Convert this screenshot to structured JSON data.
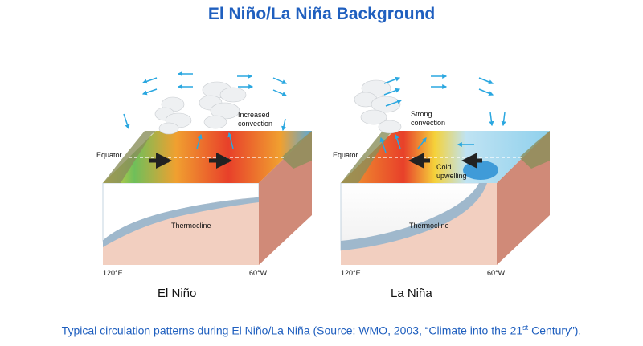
{
  "title": "El Niño/La Niña Background",
  "panels": {
    "el_nino": {
      "label": "El Niño",
      "equator": "Equator",
      "convection_line1": "Increased",
      "convection_line2": "convection",
      "thermocline": "Thermocline",
      "lon_west": "120°E",
      "lon_east": "60°W"
    },
    "la_nina": {
      "label": "La Niña",
      "equator": "Equator",
      "convection_line1": "Strong",
      "convection_line2": "convection",
      "upwelling_line1": "Cold",
      "upwelling_line2": "upwelling",
      "thermocline": "Thermocline",
      "lon_west": "120°E",
      "lon_east": "60°W"
    }
  },
  "caption": {
    "before": "Typical circulation patterns during El Niño/La Niña (Source: WMO, 2003, “Climate into the 21",
    "sup": "st",
    "after": " Century”)."
  },
  "colors": {
    "title": "#1f5fbf",
    "caption": "#1f5fbf",
    "arrow": "#2aa7e0",
    "ocean_side": "#f2cfc0",
    "east_side": "#d08a78",
    "thermocline": "#9fb8cc",
    "warm": "#e8402a",
    "cool": "#8fd0ec"
  },
  "icons": [
    "wind-arrow-icon",
    "cloud-icon",
    "current-arrow-icon"
  ]
}
